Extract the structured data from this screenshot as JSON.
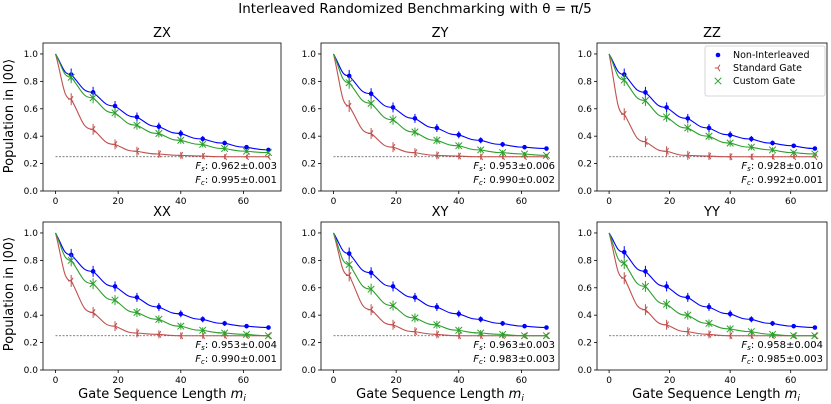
{
  "figure": {
    "title": "Interleaved Randomized Benchmarking with θ = π/5",
    "ylabel": "Population in |00⟩",
    "xlabel": "Gate Sequence Length ",
    "xlabel_sub": "m",
    "xlabel_sub2": "i"
  },
  "legend": {
    "entries": [
      {
        "label": "Non-Interleaved",
        "color": "#0000ff",
        "marker": "dot"
      },
      {
        "label": "Standard Gate",
        "color": "#c0504d",
        "marker": "tri-left"
      },
      {
        "label": "Custom Gate",
        "color": "#2ca02c",
        "marker": "x"
      }
    ],
    "position": "top-right of ZZ panel"
  },
  "chart_data": [
    {
      "type": "scatter",
      "title": "ZX",
      "x": [
        5,
        12,
        19,
        26,
        33,
        40,
        47,
        54,
        61,
        68
      ],
      "xlim": [
        -4,
        72
      ],
      "ylim": [
        0,
        1.08
      ],
      "xticks": [
        0,
        20,
        40,
        60
      ],
      "yticks": [
        0.0,
        0.2,
        0.4,
        0.6,
        0.8,
        1.0
      ],
      "baseline": 0.25,
      "series": [
        {
          "name": "Non-Interleaved",
          "values": [
            0.85,
            0.72,
            0.62,
            0.54,
            0.47,
            0.42,
            0.38,
            0.35,
            0.32,
            0.3
          ]
        },
        {
          "name": "Standard Gate",
          "values": [
            0.67,
            0.45,
            0.34,
            0.29,
            0.27,
            0.26,
            0.255,
            0.25,
            0.25,
            0.25
          ]
        },
        {
          "name": "Custom Gate",
          "values": [
            0.83,
            0.68,
            0.57,
            0.48,
            0.42,
            0.37,
            0.34,
            0.31,
            0.29,
            0.28
          ]
        }
      ],
      "fs": "0.962±0.003",
      "fc": "0.995±0.001"
    },
    {
      "type": "scatter",
      "title": "ZY",
      "x": [
        5,
        12,
        19,
        26,
        33,
        40,
        47,
        54,
        61,
        68
      ],
      "xlim": [
        -4,
        72
      ],
      "ylim": [
        0,
        1.08
      ],
      "xticks": [
        0,
        20,
        40,
        60
      ],
      "yticks": [
        0.0,
        0.2,
        0.4,
        0.6,
        0.8,
        1.0
      ],
      "baseline": 0.25,
      "series": [
        {
          "name": "Non-Interleaved",
          "values": [
            0.84,
            0.71,
            0.61,
            0.53,
            0.46,
            0.41,
            0.37,
            0.34,
            0.32,
            0.31
          ]
        },
        {
          "name": "Standard Gate",
          "values": [
            0.62,
            0.42,
            0.32,
            0.28,
            0.26,
            0.255,
            0.25,
            0.25,
            0.25,
            0.25
          ]
        },
        {
          "name": "Custom Gate",
          "values": [
            0.79,
            0.64,
            0.52,
            0.43,
            0.37,
            0.33,
            0.3,
            0.28,
            0.27,
            0.26
          ]
        }
      ],
      "fs": "0.953±0.006",
      "fc": "0.990±0.002"
    },
    {
      "type": "scatter",
      "title": "ZZ",
      "x": [
        5,
        12,
        19,
        26,
        33,
        40,
        47,
        54,
        61,
        68
      ],
      "xlim": [
        -4,
        72
      ],
      "ylim": [
        0,
        1.08
      ],
      "xticks": [
        0,
        20,
        40,
        60
      ],
      "yticks": [
        0.0,
        0.2,
        0.4,
        0.6,
        0.8,
        1.0
      ],
      "baseline": 0.25,
      "series": [
        {
          "name": "Non-Interleaved",
          "values": [
            0.85,
            0.72,
            0.61,
            0.53,
            0.46,
            0.41,
            0.38,
            0.35,
            0.33,
            0.31
          ]
        },
        {
          "name": "Standard Gate",
          "values": [
            0.56,
            0.36,
            0.29,
            0.26,
            0.255,
            0.25,
            0.25,
            0.25,
            0.25,
            0.25
          ]
        },
        {
          "name": "Custom Gate",
          "values": [
            0.81,
            0.66,
            0.54,
            0.46,
            0.4,
            0.35,
            0.32,
            0.3,
            0.28,
            0.27
          ]
        }
      ],
      "fs": "0.928±0.010",
      "fc": "0.992±0.001"
    },
    {
      "type": "scatter",
      "title": "XX",
      "x": [
        5,
        12,
        19,
        26,
        33,
        40,
        47,
        54,
        61,
        68
      ],
      "xlim": [
        -4,
        72
      ],
      "ylim": [
        0,
        1.08
      ],
      "xticks": [
        0,
        20,
        40,
        60
      ],
      "yticks": [
        0.0,
        0.2,
        0.4,
        0.6,
        0.8,
        1.0
      ],
      "baseline": 0.25,
      "series": [
        {
          "name": "Non-Interleaved",
          "values": [
            0.84,
            0.72,
            0.61,
            0.53,
            0.46,
            0.41,
            0.37,
            0.34,
            0.32,
            0.31
          ]
        },
        {
          "name": "Standard Gate",
          "values": [
            0.65,
            0.42,
            0.32,
            0.27,
            0.26,
            0.25,
            0.25,
            0.25,
            0.25,
            0.25
          ]
        },
        {
          "name": "Custom Gate",
          "values": [
            0.8,
            0.63,
            0.51,
            0.42,
            0.37,
            0.32,
            0.29,
            0.27,
            0.26,
            0.25
          ]
        }
      ],
      "fs": "0.953±0.004",
      "fc": "0.990±0.001"
    },
    {
      "type": "scatter",
      "title": "XY",
      "x": [
        5,
        12,
        19,
        26,
        33,
        40,
        47,
        54,
        61,
        68
      ],
      "xlim": [
        -4,
        72
      ],
      "ylim": [
        0,
        1.08
      ],
      "xticks": [
        0,
        20,
        40,
        60
      ],
      "yticks": [
        0.0,
        0.2,
        0.4,
        0.6,
        0.8,
        1.0
      ],
      "baseline": 0.25,
      "series": [
        {
          "name": "Non-Interleaved",
          "values": [
            0.85,
            0.71,
            0.61,
            0.53,
            0.46,
            0.41,
            0.37,
            0.34,
            0.32,
            0.31
          ]
        },
        {
          "name": "Standard Gate",
          "values": [
            0.69,
            0.44,
            0.33,
            0.28,
            0.26,
            0.25,
            0.25,
            0.25,
            0.25,
            0.25
          ]
        },
        {
          "name": "Custom Gate",
          "values": [
            0.77,
            0.59,
            0.47,
            0.38,
            0.33,
            0.29,
            0.27,
            0.26,
            0.25,
            0.25
          ]
        }
      ],
      "fs": "0.963±0.003",
      "fc": "0.983±0.003"
    },
    {
      "type": "scatter",
      "title": "YY",
      "x": [
        5,
        12,
        19,
        26,
        33,
        40,
        47,
        54,
        61,
        68
      ],
      "xlim": [
        -4,
        72
      ],
      "ylim": [
        0,
        1.08
      ],
      "xticks": [
        0,
        20,
        40,
        60
      ],
      "yticks": [
        0.0,
        0.2,
        0.4,
        0.6,
        0.8,
        1.0
      ],
      "baseline": 0.25,
      "series": [
        {
          "name": "Non-Interleaved",
          "values": [
            0.86,
            0.72,
            0.61,
            0.53,
            0.46,
            0.41,
            0.37,
            0.34,
            0.32,
            0.31
          ]
        },
        {
          "name": "Standard Gate",
          "values": [
            0.67,
            0.44,
            0.33,
            0.28,
            0.26,
            0.25,
            0.25,
            0.25,
            0.25,
            0.25
          ]
        },
        {
          "name": "Custom Gate",
          "values": [
            0.78,
            0.61,
            0.48,
            0.4,
            0.34,
            0.3,
            0.28,
            0.26,
            0.25,
            0.25
          ]
        }
      ],
      "fs": "0.958±0.004",
      "fc": "0.985±0.003"
    }
  ]
}
